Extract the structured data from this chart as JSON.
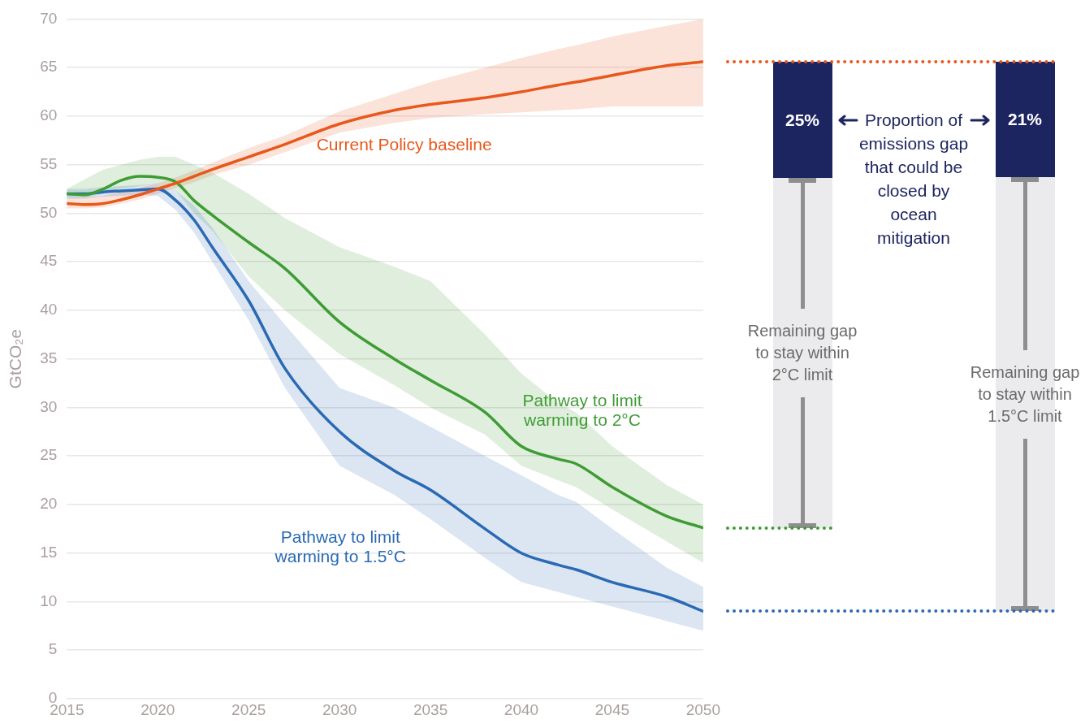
{
  "chart_data": [
    {
      "type": "line",
      "ylabel": "GtCO₂e",
      "x": [
        2015,
        2016,
        2017,
        2018,
        2019,
        2020,
        2021,
        2022,
        2023,
        2025,
        2027,
        2030,
        2033,
        2035,
        2038,
        2040,
        2042,
        2043,
        2045,
        2048,
        2050
      ],
      "xlim": [
        2015,
        2050
      ],
      "xticks": [
        2015,
        2020,
        2025,
        2030,
        2035,
        2040,
        2045,
        2050
      ],
      "ylim": [
        0,
        70
      ],
      "yticks": [
        0,
        5,
        10,
        15,
        20,
        25,
        30,
        35,
        40,
        45,
        50,
        55,
        60,
        65,
        70
      ],
      "grid": "y",
      "legend": false,
      "marker": "none",
      "line_style": "solid",
      "series": [
        {
          "name": "Current Policy baseline",
          "color": "#e8581c",
          "values": [
            51.0,
            50.9,
            51.0,
            51.4,
            51.9,
            52.5,
            53.1,
            53.8,
            54.5,
            55.8,
            57.1,
            59.2,
            60.6,
            61.2,
            61.9,
            62.5,
            63.2,
            63.5,
            64.2,
            65.2,
            65.6
          ],
          "lower": [
            50.5,
            50.5,
            50.6,
            51.0,
            51.4,
            52.0,
            52.6,
            53.2,
            53.9,
            55.0,
            56.3,
            58.3,
            59.3,
            59.8,
            60.2,
            60.4,
            60.6,
            60.7,
            61.0,
            61.0,
            61.0
          ],
          "upper": [
            51.5,
            51.6,
            51.8,
            52.2,
            52.6,
            53.1,
            53.7,
            54.4,
            55.2,
            56.7,
            58.0,
            60.5,
            62.3,
            63.5,
            65.0,
            66.0,
            66.9,
            67.3,
            68.2,
            69.3,
            70.0
          ]
        },
        {
          "name": "Pathway to limit warming to 2°C",
          "color": "#3f9c35",
          "values": [
            52.0,
            51.9,
            52.5,
            53.4,
            53.8,
            53.7,
            53.2,
            51.3,
            49.8,
            47.0,
            44.3,
            38.8,
            35.0,
            32.8,
            29.5,
            26.0,
            24.7,
            24.2,
            21.8,
            18.8,
            17.6
          ],
          "lower": [
            51.5,
            51.6,
            52.0,
            52.5,
            52.8,
            53.0,
            52.3,
            50.0,
            48.2,
            43.5,
            40.0,
            35.5,
            32.3,
            30.0,
            27.2,
            24.0,
            22.5,
            21.8,
            19.5,
            16.2,
            14.0
          ],
          "upper": [
            52.5,
            53.5,
            54.5,
            55.0,
            55.5,
            55.8,
            55.8,
            55.0,
            54.2,
            52.0,
            49.5,
            46.5,
            44.5,
            43.0,
            37.5,
            33.5,
            30.5,
            29.5,
            26.0,
            22.0,
            20.0
          ]
        },
        {
          "name": "Pathway to limit warming to 1.5°C",
          "color": "#2a6ab4",
          "values": [
            52.0,
            52.0,
            52.2,
            52.3,
            52.4,
            52.5,
            51.3,
            49.3,
            46.5,
            41.0,
            34.0,
            27.5,
            23.5,
            21.5,
            17.5,
            15.0,
            13.8,
            13.3,
            12.0,
            10.5,
            9.0
          ],
          "lower": [
            51.5,
            51.5,
            51.7,
            51.8,
            51.9,
            51.8,
            50.3,
            48.0,
            45.0,
            39.0,
            32.0,
            24.0,
            21.0,
            18.5,
            14.5,
            12.0,
            11.0,
            10.5,
            9.5,
            8.0,
            7.0
          ],
          "upper": [
            52.5,
            52.5,
            52.7,
            52.8,
            52.9,
            53.0,
            52.3,
            50.8,
            48.5,
            43.0,
            38.5,
            32.0,
            30.0,
            28.0,
            25.0,
            23.0,
            21.0,
            20.3,
            17.5,
            13.5,
            11.5
          ]
        }
      ]
    },
    {
      "type": "other",
      "categories": [
        null,
        null
      ],
      "values": [
        25,
        21
      ],
      "value_labels": [
        "25%",
        "21%"
      ],
      "colors": [
        "#1d2560",
        "#1d2560"
      ],
      "annotations": [
        "Proportion of emissions gap that could be closed by ocean mitigation",
        "Remaining gap to stay within 2°C limit",
        "Remaining gap to stay within 1.5°C limit"
      ]
    }
  ]
}
